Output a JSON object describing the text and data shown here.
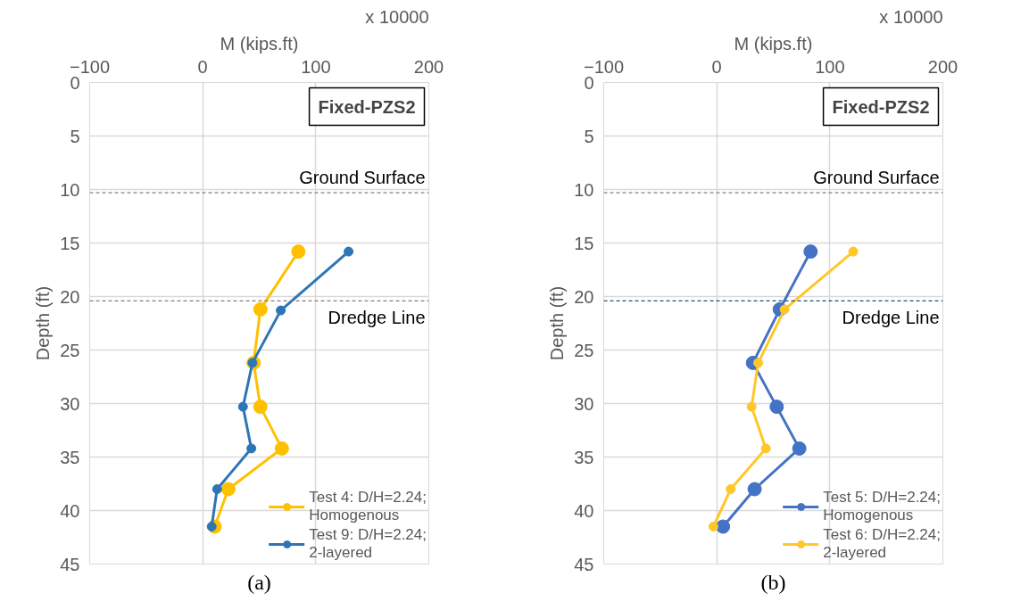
{
  "chart_data": [
    {
      "type": "line",
      "xlabel": "M (kips.ft)",
      "ylabel": "Depth (ft)",
      "annotations": [
        "Fixed-PZS2",
        "x 10000",
        "(a)"
      ],
      "xlim": [
        -100,
        200
      ],
      "xticks": [
        -100,
        0,
        100,
        200
      ],
      "ylim": [
        45,
        0
      ],
      "yticks": [
        0,
        5,
        10,
        15,
        20,
        25,
        30,
        35,
        40,
        45
      ],
      "grid": true,
      "marker": "circle",
      "line_style": "solid",
      "ref_lines": [
        {
          "axis": "y",
          "value": 10.3,
          "label": "Ground Surface",
          "color": "#7f7f7f",
          "line_style": "dashed"
        },
        {
          "axis": "y",
          "value": 20.4,
          "label": "Dredge Line",
          "color": "#7f7f7f",
          "line_style": "dashed"
        }
      ],
      "legend": "bottom right",
      "series": [
        {
          "name": "Test 4: D/H=2.24; Homogenous",
          "color": "#ffc000",
          "x": [
            84.6,
            51,
            45,
            51,
            70,
            22.6,
            10.6
          ],
          "values": [
            15.8,
            21.2,
            26.2,
            30.3,
            34.2,
            38.0,
            41.5
          ]
        },
        {
          "name": "Test 9: D/H=2.24; 2-layered",
          "color": "#2e75b6",
          "x": [
            129,
            69,
            44,
            35.6,
            43,
            12.7,
            7.9
          ],
          "values": [
            15.8,
            21.3,
            26.2,
            30.3,
            34.2,
            38.0,
            41.5
          ]
        }
      ]
    },
    {
      "type": "line",
      "xlabel": "M (kips.ft)",
      "ylabel": "Depth (ft)",
      "annotations": [
        "Fixed-PZS2",
        "x 10000",
        "(b)"
      ],
      "xlim": [
        -100,
        200
      ],
      "xticks": [
        -100,
        0,
        100,
        200
      ],
      "ylim": [
        45,
        0
      ],
      "yticks": [
        0,
        5,
        10,
        15,
        20,
        25,
        30,
        35,
        40,
        45
      ],
      "grid": true,
      "marker": "circle",
      "line_style": "solid",
      "ref_lines": [
        {
          "axis": "y",
          "value": 10.3,
          "label": "Ground Surface",
          "color": "#7f7f7f",
          "line_style": "dashed"
        },
        {
          "axis": "y",
          "value": 20.4,
          "label": "Dredge Line",
          "color": "#1f4e79",
          "line_style": "dashed"
        }
      ],
      "legend": "bottom right",
      "series": [
        {
          "name": "Test 5: D/H=2.24; Homogenous",
          "color": "#4472c4",
          "x": [
            83,
            55.7,
            32,
            53,
            73,
            33.5,
            5.5
          ],
          "values": [
            15.8,
            21.2,
            26.2,
            30.3,
            34.2,
            38.0,
            41.5
          ]
        },
        {
          "name": "Test 6: D/H=2.24; 2-layered",
          "color": "#ffc728",
          "x": [
            120.7,
            60,
            36.6,
            30.8,
            43.4,
            12.3,
            -3
          ],
          "values": [
            15.8,
            21.2,
            26.2,
            30.3,
            34.2,
            38.0,
            41.5
          ]
        }
      ]
    }
  ]
}
